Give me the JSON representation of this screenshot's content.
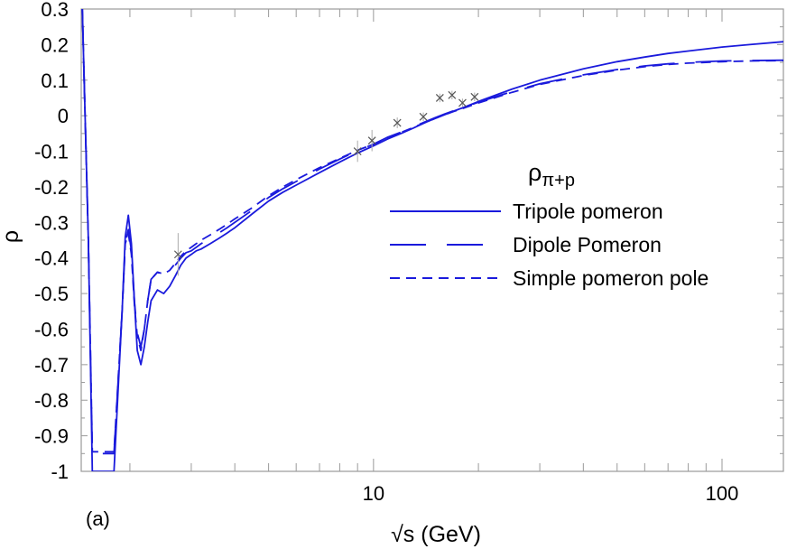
{
  "chart_data": {
    "type": "line",
    "panel_label": "(a)",
    "xlabel": "√s (GeV)",
    "ylabel": "ρ",
    "xscale": "log",
    "xlim": [
      1.45,
      150
    ],
    "ylim": [
      -1,
      0.3
    ],
    "x_tick_labels": [
      {
        "value": 10,
        "label": "10"
      },
      {
        "value": 100,
        "label": "100"
      }
    ],
    "y_ticks": [
      -1,
      -0.9,
      -0.8,
      -0.7,
      -0.6,
      -0.5,
      -0.4,
      -0.3,
      -0.2,
      -0.1,
      0,
      0.1,
      0.2,
      0.3
    ],
    "y_tick_labels": [
      "-1",
      "-0.9",
      "-0.8",
      "-0.7",
      "-0.6",
      "-0.5",
      "-0.4",
      "-0.3",
      "-0.2",
      "-0.1",
      "0",
      "0.1",
      "0.2",
      "0.3"
    ],
    "legend": {
      "title_main": "ρ",
      "title_sub": "π+p",
      "placement": "right"
    },
    "series": [
      {
        "name": "Tripole pomeron",
        "color": "#1a1adc",
        "dash": "solid",
        "x": [
          1.46,
          1.52,
          1.56,
          1.6,
          1.7,
          1.8,
          1.9,
          1.94,
          1.98,
          2.02,
          2.06,
          2.1,
          2.15,
          2.2,
          2.25,
          2.3,
          2.4,
          2.5,
          2.6,
          2.7,
          2.8,
          2.9,
          3.0,
          3.1,
          3.2,
          3.4,
          3.6,
          3.8,
          4.0,
          4.5,
          5.0,
          5.5,
          6,
          7,
          8,
          9,
          10,
          11,
          12,
          13,
          14,
          15,
          16,
          17,
          18,
          20,
          25,
          30,
          40,
          50,
          60,
          70,
          80,
          100,
          120,
          150
        ],
        "y": [
          0.3,
          -0.35,
          -1.0,
          -1.0,
          -1.0,
          -1.0,
          -0.55,
          -0.34,
          -0.28,
          -0.36,
          -0.52,
          -0.66,
          -0.7,
          -0.65,
          -0.58,
          -0.52,
          -0.49,
          -0.5,
          -0.48,
          -0.45,
          -0.42,
          -0.4,
          -0.39,
          -0.38,
          -0.375,
          -0.36,
          -0.345,
          -0.33,
          -0.315,
          -0.275,
          -0.24,
          -0.215,
          -0.195,
          -0.16,
          -0.13,
          -0.105,
          -0.085,
          -0.065,
          -0.05,
          -0.035,
          -0.02,
          -0.008,
          0.003,
          0.013,
          0.022,
          0.04,
          0.075,
          0.1,
          0.132,
          0.152,
          0.165,
          0.175,
          0.182,
          0.193,
          0.2,
          0.208
        ]
      },
      {
        "name": "Dipole Pomeron",
        "color": "#1a1adc",
        "dash": "long",
        "x": [
          1.46,
          1.52,
          1.56,
          1.6,
          1.7,
          1.8,
          1.9,
          1.94,
          1.98,
          2.02,
          2.06,
          2.1,
          2.15,
          2.2,
          2.25,
          2.3,
          2.4,
          2.5,
          2.6,
          2.7,
          2.8,
          2.9,
          3.0,
          3.1,
          3.2,
          3.4,
          3.6,
          3.8,
          4.0,
          4.5,
          5.0,
          5.5,
          6,
          7,
          8,
          9,
          10,
          11,
          12,
          13,
          14,
          15,
          16,
          17,
          18,
          20,
          25,
          30,
          40,
          50,
          60,
          70,
          80,
          100,
          120,
          150
        ],
        "y": [
          0.3,
          -0.35,
          -0.95,
          -0.95,
          -0.95,
          -0.95,
          -0.55,
          -0.36,
          -0.32,
          -0.38,
          -0.52,
          -0.61,
          -0.65,
          -0.6,
          -0.52,
          -0.46,
          -0.44,
          -0.45,
          -0.44,
          -0.42,
          -0.4,
          -0.385,
          -0.38,
          -0.37,
          -0.36,
          -0.345,
          -0.33,
          -0.315,
          -0.3,
          -0.265,
          -0.23,
          -0.205,
          -0.185,
          -0.15,
          -0.122,
          -0.098,
          -0.08,
          -0.06,
          -0.046,
          -0.032,
          -0.018,
          -0.006,
          0.005,
          0.014,
          0.022,
          0.038,
          0.068,
          0.09,
          0.115,
          0.13,
          0.14,
          0.146,
          0.15,
          0.154,
          0.155,
          0.156
        ]
      },
      {
        "name": "Simple pomeron pole",
        "color": "#1a1adc",
        "dash": "short",
        "x": [
          1.46,
          1.52,
          1.56,
          1.6,
          1.7,
          1.8,
          1.9,
          1.94,
          1.98,
          2.02,
          2.06,
          2.1,
          2.15,
          2.2,
          2.25,
          2.3,
          2.4,
          2.5,
          2.6,
          2.7,
          2.8,
          2.9,
          3.0,
          3.1,
          3.2,
          3.4,
          3.6,
          3.8,
          4.0,
          4.5,
          5.0,
          5.5,
          6,
          7,
          8,
          9,
          10,
          11,
          12,
          13,
          14,
          15,
          16,
          17,
          18,
          20,
          25,
          30,
          40,
          50,
          60,
          70,
          80,
          100,
          120,
          150
        ],
        "y": [
          0.3,
          -0.35,
          -0.945,
          -0.945,
          -0.945,
          -0.945,
          -0.55,
          -0.36,
          -0.33,
          -0.39,
          -0.53,
          -0.62,
          -0.66,
          -0.6,
          -0.52,
          -0.46,
          -0.44,
          -0.445,
          -0.435,
          -0.415,
          -0.395,
          -0.38,
          -0.37,
          -0.36,
          -0.35,
          -0.335,
          -0.32,
          -0.305,
          -0.29,
          -0.258,
          -0.225,
          -0.2,
          -0.18,
          -0.146,
          -0.12,
          -0.097,
          -0.08,
          -0.061,
          -0.047,
          -0.033,
          -0.02,
          -0.008,
          0.003,
          0.012,
          0.02,
          0.036,
          0.066,
          0.088,
          0.113,
          0.128,
          0.138,
          0.144,
          0.148,
          0.152,
          0.154,
          0.155
        ]
      }
    ],
    "data_points": {
      "marker": "x",
      "color": "#555555",
      "x": [
        2.75,
        9.0,
        9.9,
        11.7,
        13.9,
        15.5,
        16.8,
        18.0,
        19.5
      ],
      "y": [
        -0.39,
        -0.1,
        -0.07,
        -0.02,
        -0.003,
        0.05,
        0.058,
        0.036,
        0.053
      ],
      "err": [
        0.06,
        0.03,
        0.03,
        0.015,
        0.012,
        0.012,
        0.012,
        0.012,
        0.012
      ]
    }
  }
}
